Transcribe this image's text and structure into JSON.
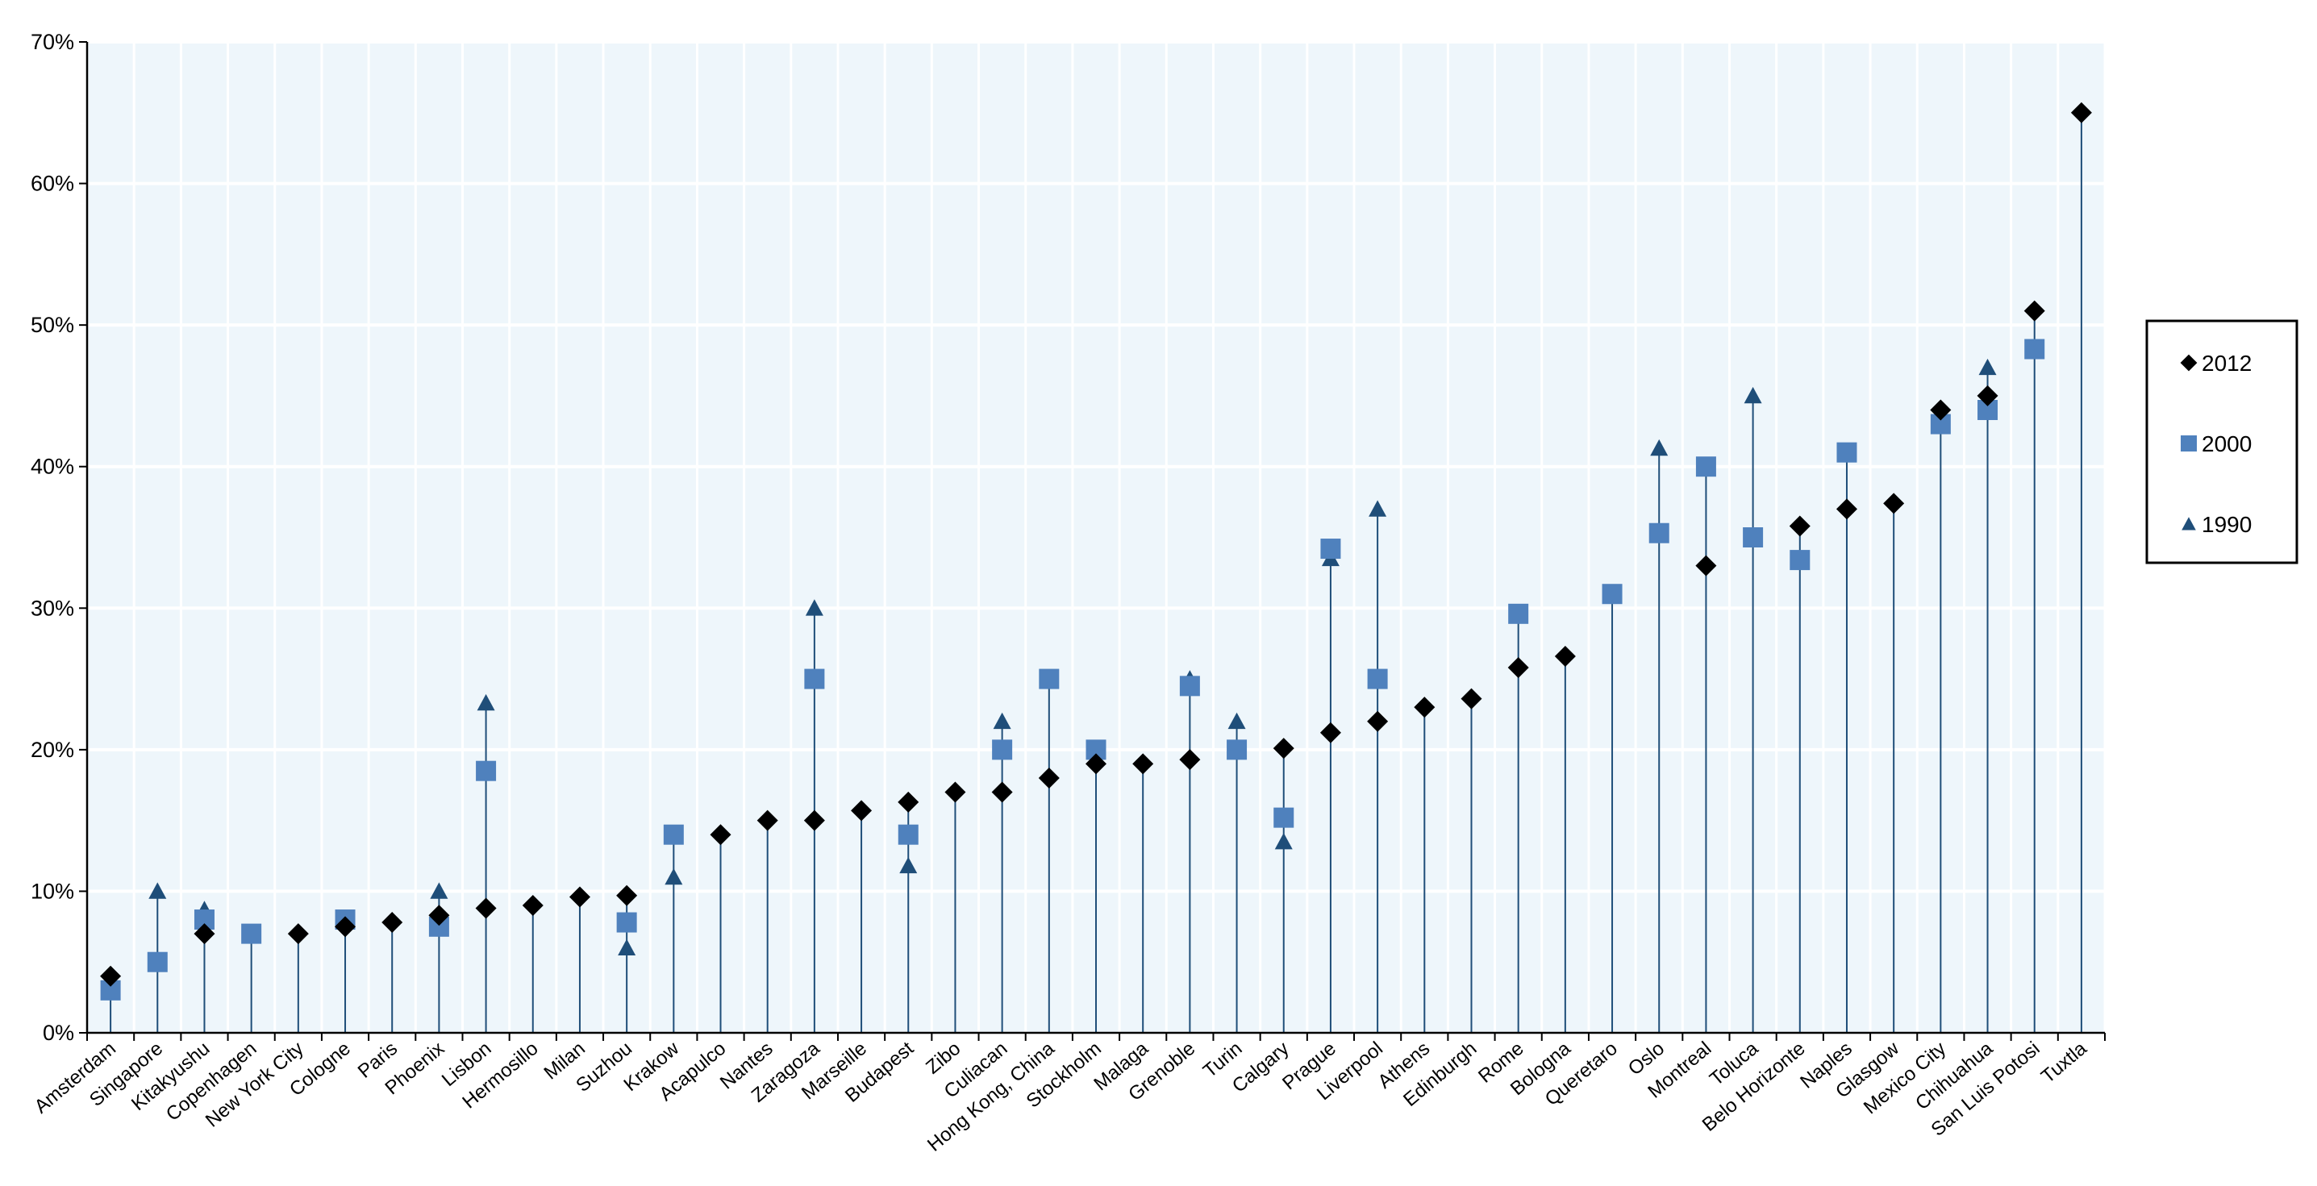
{
  "chart_data": {
    "type": "scatter",
    "title": "",
    "xlabel": "",
    "ylabel": "",
    "ylim": [
      0,
      70
    ],
    "yticks": [
      0,
      10,
      20,
      30,
      40,
      50,
      60,
      70
    ],
    "ytick_labels": [
      "0%",
      "10%",
      "20%",
      "30%",
      "40%",
      "50%",
      "60%",
      "70%"
    ],
    "grid": "horizontal",
    "legend_position": "right",
    "categories": [
      "Amsterdam",
      "Singapore",
      "Kitakyushu",
      "Copenhagen",
      "New York City",
      "Cologne",
      "Paris",
      "Phoenix",
      "Lisbon",
      "Hermosillo",
      "Milan",
      "Suzhou",
      "Krakow",
      "Acapulco",
      "Nantes",
      "Zaragoza",
      "Marseille",
      "Budapest",
      "Zibo",
      "Culiacan",
      "Hong Kong, China",
      "Stockholm",
      "Malaga",
      "Grenoble",
      "Turin",
      "Calgary",
      "Prague",
      "Liverpool",
      "Athens",
      "Edinburgh",
      "Rome",
      "Bologna",
      "Queretaro",
      "Oslo",
      "Montreal",
      "Toluca",
      "Belo Horizonte",
      "Naples",
      "Glasgow",
      "Mexico City",
      "Chihuahua",
      "San Luis Potosi",
      "Tuxtla"
    ],
    "series": [
      {
        "name": "2012",
        "marker": "diamond",
        "color": "#000000",
        "values": [
          4,
          null,
          7,
          null,
          7,
          7.5,
          7.8,
          8.3,
          8.8,
          9,
          9.6,
          9.7,
          null,
          14,
          15,
          15,
          15.7,
          16.3,
          17,
          17,
          18,
          19,
          19,
          19.3,
          null,
          20.1,
          21.2,
          22,
          23,
          23.6,
          25.8,
          26.6,
          null,
          null,
          33,
          null,
          35.8,
          37,
          37.4,
          44,
          45,
          51,
          65
        ]
      },
      {
        "name": "2000",
        "marker": "square",
        "color": "#4f81bd",
        "values": [
          3,
          5,
          8,
          7,
          null,
          8,
          null,
          7.5,
          18.5,
          null,
          null,
          7.8,
          14,
          null,
          null,
          25,
          null,
          14,
          null,
          20,
          25,
          20,
          null,
          24.5,
          20,
          15.2,
          34.2,
          25,
          null,
          null,
          29.6,
          null,
          31,
          35.3,
          40,
          35,
          33.4,
          41,
          null,
          43,
          44,
          48.3,
          null
        ]
      },
      {
        "name": "1990",
        "marker": "triangle",
        "color": "#1f4e79",
        "values": [
          3,
          10,
          8.7,
          7,
          null,
          8,
          null,
          10,
          23.3,
          null,
          null,
          6,
          11,
          null,
          null,
          30,
          null,
          11.8,
          null,
          22,
          null,
          20,
          null,
          25,
          22,
          13.5,
          33.5,
          37,
          null,
          null,
          null,
          null,
          null,
          41.3,
          null,
          45,
          null,
          null,
          null,
          null,
          47,
          null,
          null
        ]
      }
    ]
  }
}
